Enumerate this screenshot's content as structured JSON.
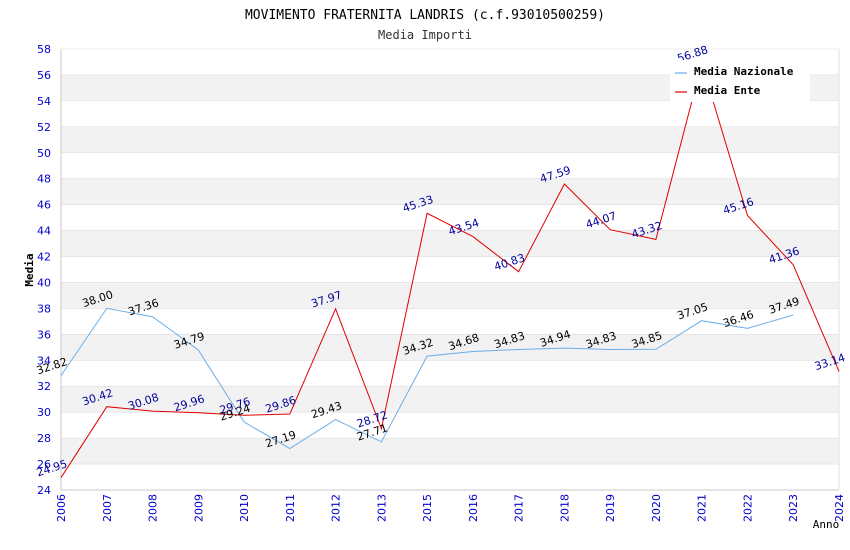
{
  "chart_data": {
    "type": "line",
    "title": "MOVIMENTO FRATERNITA LANDRIS (c.f.93010500259)",
    "subtitle": "Media Importi",
    "xlabel": "Anno",
    "ylabel": "Media",
    "ylim": [
      24,
      58
    ],
    "ytick_step": 2,
    "grid": "horizontal alternating bands",
    "legend_position": "top-right",
    "categories": [
      "2006",
      "2007",
      "2008",
      "2009",
      "2010",
      "2011",
      "2012",
      "2013",
      "2015",
      "2016",
      "2017",
      "2018",
      "2019",
      "2020",
      "2021",
      "2022",
      "2023",
      "2024"
    ],
    "series": [
      {
        "name": "Media Nazionale",
        "color": "#6aaee8",
        "label_color": "#000000",
        "values": [
          32.82,
          38.0,
          37.36,
          34.79,
          29.24,
          27.19,
          29.43,
          27.71,
          34.32,
          34.68,
          34.83,
          34.94,
          34.83,
          34.85,
          37.05,
          36.46,
          37.49,
          null
        ]
      },
      {
        "name": "Media Ente",
        "color": "#e00000",
        "label_color": "#000099",
        "values": [
          24.95,
          30.42,
          30.08,
          29.96,
          29.76,
          29.86,
          37.97,
          28.72,
          45.33,
          43.54,
          40.83,
          47.59,
          44.07,
          43.32,
          56.88,
          45.16,
          41.36,
          33.14
        ]
      }
    ]
  },
  "colors": {
    "axis_tick_labels": "#0000cc",
    "band": "#f2f2f2",
    "gridline": "#dddddd"
  }
}
